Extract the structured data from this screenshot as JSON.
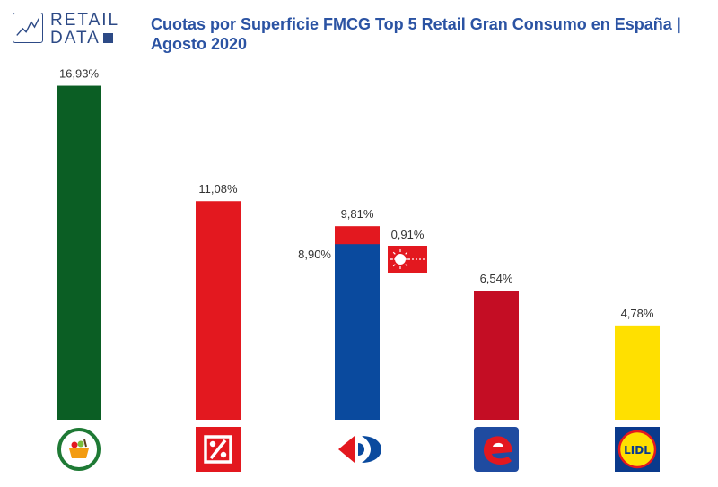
{
  "brand": {
    "line1": "RETAIL",
    "line2": "DATA"
  },
  "title": "Cuotas por Superficie FMCG Top 5 Retail Gran Consumo en España | Agosto 2020",
  "chart_data": {
    "type": "bar",
    "title": "Cuotas por Superficie FMCG Top 5 Retail Gran Consumo en España | Agosto 2020",
    "ylim": [
      0,
      17
    ],
    "grid": false,
    "bars": [
      {
        "value": 16.93,
        "label": "16,93%",
        "color": "#0b5e24",
        "logo": "mercadona-logo"
      },
      {
        "value": 11.08,
        "label": "11,08%",
        "color": "#e3181f",
        "logo": "dia-logo"
      },
      {
        "value": 9.81,
        "label": "9,81%",
        "color": "#e3181f",
        "segments": [
          {
            "value": 8.9,
            "label": "8,90%",
            "color": "#0a4a9e"
          }
        ],
        "side": {
          "value": 0.91,
          "label": "0,91%",
          "color": "#e3181f"
        },
        "logo": "carrefour-logo"
      },
      {
        "value": 6.54,
        "label": "6,54%",
        "color": "#c40d24",
        "logo": "eroski-logo"
      },
      {
        "value": 4.78,
        "label": "4,78%",
        "color": "#ffe000",
        "logo": "lidl-logo"
      }
    ]
  },
  "colors": {
    "brand": "#2d4a86",
    "title": "#2b53a3",
    "label": "#333333"
  }
}
